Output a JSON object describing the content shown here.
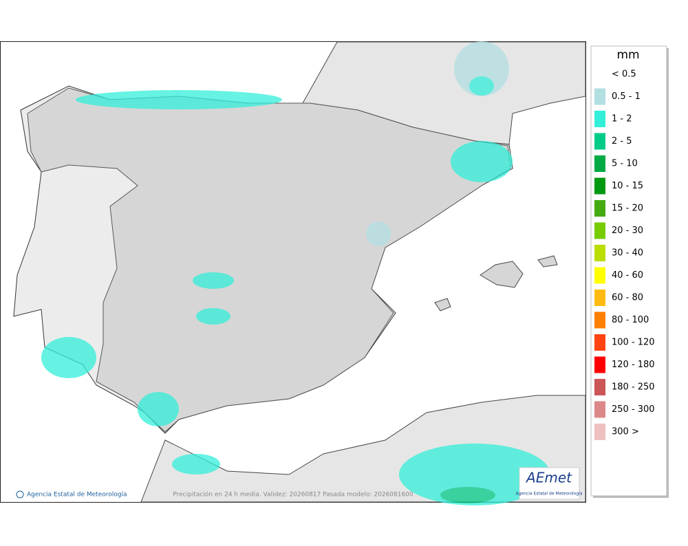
{
  "map": {
    "credit": "Agencia Estatal de Meteorología",
    "caption": "Precipitación en 24 h media. Validez: 20260817 Pasada modelo: 2026081600",
    "logo": "AEmet",
    "logo_subtitle": "Agencia Estatal de Meteorología"
  },
  "legend": {
    "title": "mm",
    "items": [
      {
        "label": "< 0.5"
      },
      {
        "label": "0.5 - 1",
        "color": "#b2dfe2"
      },
      {
        "label": "1 - 2",
        "color": "#33efd9"
      },
      {
        "label": "2 - 5",
        "color": "#00cc88"
      },
      {
        "label": "5 - 10",
        "color": "#00aa44"
      },
      {
        "label": "10 - 15",
        "color": "#009911"
      },
      {
        "label": "15 - 20",
        "color": "#44aa11"
      },
      {
        "label": "20 - 30",
        "color": "#77cc00"
      },
      {
        "label": "30 - 40",
        "color": "#bbdd00"
      },
      {
        "label": "40 - 60",
        "color": "#ffff00"
      },
      {
        "label": "60 - 80",
        "color": "#ffbb11"
      },
      {
        "label": "80 - 100",
        "color": "#ff7f00"
      },
      {
        "label": "100 - 120",
        "color": "#ff4411"
      },
      {
        "label": "120 - 180",
        "color": "#ff0000"
      },
      {
        "label": "180 - 250",
        "color": "#cc5555"
      },
      {
        "label": "250 - 300",
        "color": "#dd8888"
      },
      {
        "label": "300 >",
        "color": "#eec0c0"
      }
    ]
  }
}
